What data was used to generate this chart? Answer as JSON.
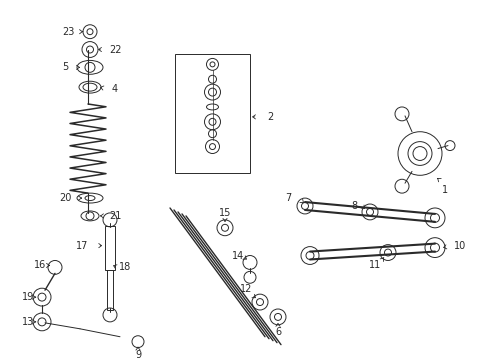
{
  "bg_color": "#ffffff",
  "lc": "#2a2a2a",
  "lw": 0.7,
  "fig_w": 4.89,
  "fig_h": 3.6,
  "dpi": 100,
  "xlim": [
    0,
    489
  ],
  "ylim": [
    0,
    360
  ]
}
